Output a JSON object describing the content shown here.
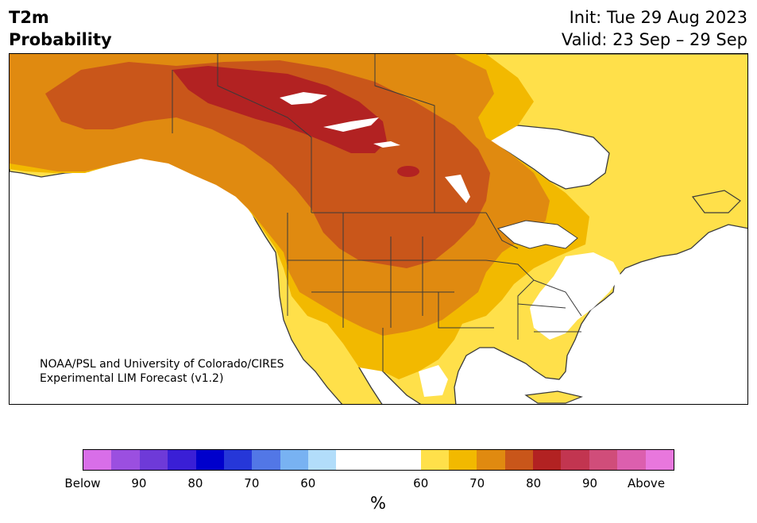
{
  "title": {
    "variable": "T2m",
    "subtitle": "Probability",
    "init": "Init: Tue 29 Aug 2023",
    "valid": "Valid: 23 Sep – 29 Sep"
  },
  "credit": {
    "line1": "NOAA/PSL and University of Colorado/CIRES",
    "line2": "Experimental LIM Forecast (v1.2)"
  },
  "colorbar": {
    "label": "%",
    "colors": [
      "#d86ee8",
      "#9b4fe0",
      "#6e3ad8",
      "#3a1fd6",
      "#0000cc",
      "#2637d8",
      "#5277e6",
      "#78b2f2",
      "#b2ddfa",
      "#ffffff",
      "#ffe04a",
      "#f2b900",
      "#e08a10",
      "#c9561a",
      "#b22222",
      "#c23550",
      "#d04d7a",
      "#dc5fae",
      "#e877dd"
    ],
    "tick_labels": [
      "Below",
      "90",
      "80",
      "70",
      "60",
      "60",
      "70",
      "80",
      "90",
      "Above"
    ]
  },
  "palette": {
    "ocean": "#ffffff",
    "p60": "#ffe04a",
    "p65": "#f2b900",
    "p70": "#e08a10",
    "p75": "#c9561a",
    "p80": "#b22222",
    "border": "#3a3a3a"
  }
}
